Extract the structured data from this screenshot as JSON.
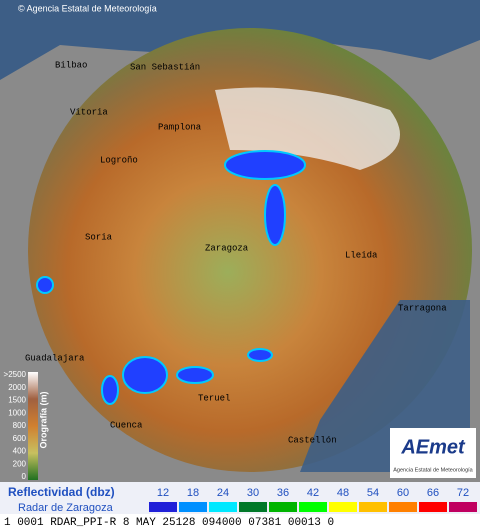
{
  "copyright": "© Agencia Estatal de Meteorología",
  "cities": [
    "Bilbao",
    "San Sebastián",
    "Vitoria",
    "Pamplona",
    "Logroño",
    "Soria",
    "Zaragoza",
    "Lleida",
    "Tarragona",
    "Guadalajara",
    "Teruel",
    "Cuenca",
    "Castellón"
  ],
  "orography": {
    "title": "Orografía (m)",
    "labels": [
      ">2500",
      "2000",
      "1500",
      "1000",
      "800",
      "600",
      "400",
      "200",
      "0"
    ]
  },
  "logo": {
    "name": "AEmet",
    "caption": "Agencia Estatal de Meteorología"
  },
  "legend": {
    "title": "Reflectividad (dbz)",
    "subtitle": "Radar de Zaragoza",
    "levels": [
      {
        "value": "12",
        "color": "#2020d8"
      },
      {
        "value": "18",
        "color": "#0090ff"
      },
      {
        "value": "24",
        "color": "#00e8ff"
      },
      {
        "value": "30",
        "color": "#007828"
      },
      {
        "value": "36",
        "color": "#00b400"
      },
      {
        "value": "42",
        "color": "#00ff00"
      },
      {
        "value": "48",
        "color": "#ffff00"
      },
      {
        "value": "54",
        "color": "#ffc000"
      },
      {
        "value": "60",
        "color": "#ff8000"
      },
      {
        "value": "66",
        "color": "#ff0000"
      },
      {
        "value": "72",
        "color": "#c00060"
      }
    ]
  },
  "status": "1 0001 RDAR_PPI-R   8 MAY 25128 094000 07381 00013 0"
}
